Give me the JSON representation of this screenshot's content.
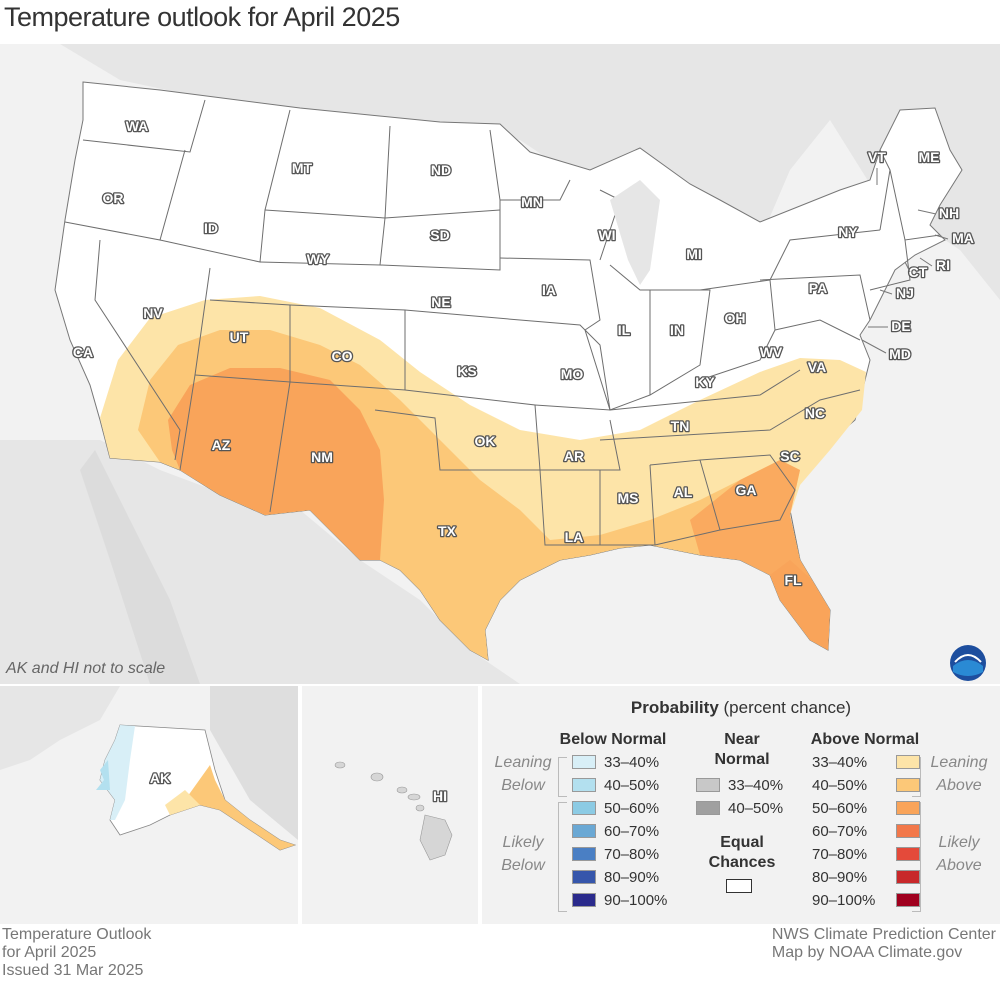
{
  "title": "Temperature outlook for April 2025",
  "note": "AK and HI not to scale",
  "states": {
    "WA": "WA",
    "OR": "OR",
    "CA": "CA",
    "ID": "ID",
    "NV": "NV",
    "MT": "MT",
    "WY": "WY",
    "UT": "UT",
    "AZ": "AZ",
    "CO": "CO",
    "NM": "NM",
    "ND": "ND",
    "SD": "SD",
    "NE": "NE",
    "KS": "KS",
    "OK": "OK",
    "TX": "TX",
    "MN": "MN",
    "IA": "IA",
    "MO": "MO",
    "AR": "AR",
    "LA": "LA",
    "WI": "WI",
    "IL": "IL",
    "MI": "MI",
    "IN": "IN",
    "OH": "OH",
    "KY": "KY",
    "TN": "TN",
    "MS": "MS",
    "AL": "AL",
    "GA": "GA",
    "FL": "FL",
    "SC": "SC",
    "NC": "NC",
    "VA": "VA",
    "WV": "WV",
    "PA": "PA",
    "NY": "NY",
    "VT": "VT",
    "ME": "ME",
    "NH": "NH",
    "MA": "MA",
    "RI": "RI",
    "CT": "CT",
    "NJ": "NJ",
    "DE": "DE",
    "MD": "MD",
    "AK": "AK",
    "HI": "HI"
  },
  "legend": {
    "title_bold": "Probability",
    "title_rest": " (percent chance)",
    "below_header": "Below Normal",
    "near_header": "Near Normal",
    "above_header": "Above Normal",
    "leaning_below": "Leaning Below",
    "likely_below": "Likely Below",
    "leaning_above": "Leaning Above",
    "likely_above": "Likely Above",
    "equal_chances": "Equal Chances",
    "below": [
      {
        "label": "33–40%",
        "color": "#d8eff7"
      },
      {
        "label": "40–50%",
        "color": "#b3e0ef"
      },
      {
        "label": "50–60%",
        "color": "#8ccbe4"
      },
      {
        "label": "60–70%",
        "color": "#6aa8d4"
      },
      {
        "label": "70–80%",
        "color": "#4a7fc4"
      },
      {
        "label": "80–90%",
        "color": "#3656ab"
      },
      {
        "label": "90–100%",
        "color": "#2a2a8c"
      }
    ],
    "near": [
      {
        "label": "33–40%",
        "color": "#c8c8c8"
      },
      {
        "label": "40–50%",
        "color": "#a0a0a0"
      }
    ],
    "above": [
      {
        "label": "33–40%",
        "color": "#fde4a8"
      },
      {
        "label": "40–50%",
        "color": "#fcc878"
      },
      {
        "label": "50–60%",
        "color": "#f9a45a"
      },
      {
        "label": "60–70%",
        "color": "#f2784a"
      },
      {
        "label": "70–80%",
        "color": "#e44a3a"
      },
      {
        "label": "80–90%",
        "color": "#c8282a"
      },
      {
        "label": "90–100%",
        "color": "#a0001e"
      }
    ]
  },
  "footer": {
    "left1": "Temperature Outlook",
    "left2": "for April 2025",
    "left3": "Issued 31 Mar 2025",
    "right1": "NWS Climate Prediction Center",
    "right2": "Map by NOAA Climate.gov"
  },
  "colors": {
    "background_land": "#e8e8e8",
    "us_land": "#ffffff",
    "border": "#6e6e6e"
  }
}
